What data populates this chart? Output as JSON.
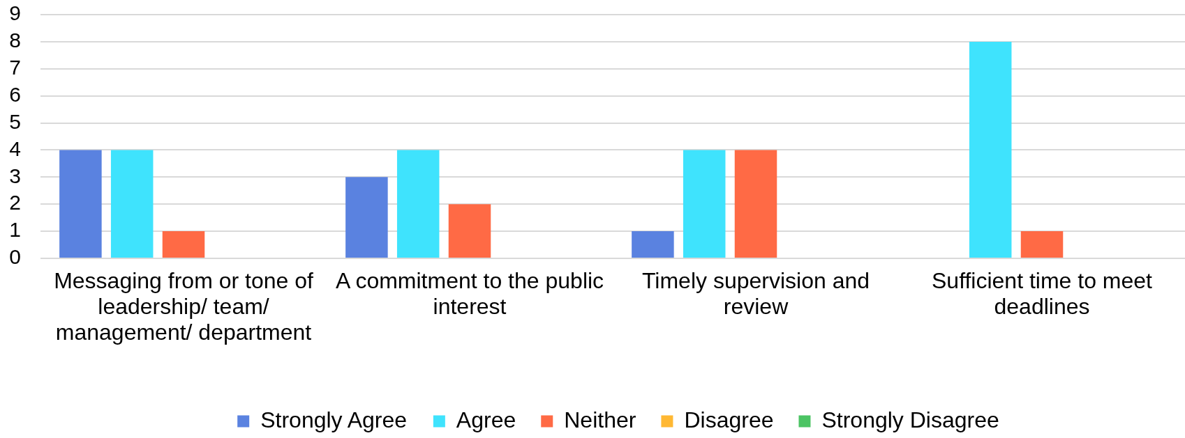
{
  "chart_data": {
    "type": "bar",
    "categories": [
      "Messaging from or tone of leadership/ team/ management/ department",
      "A commitment to the public interest",
      "Timely supervision and review",
      "Sufficient time to meet deadlines"
    ],
    "series": [
      {
        "name": "Strongly Agree",
        "color": "#5a82e0",
        "values": [
          4,
          3,
          1,
          0
        ]
      },
      {
        "name": "Agree",
        "color": "#3fe3fd",
        "values": [
          4,
          4,
          4,
          8
        ]
      },
      {
        "name": "Neither",
        "color": "#ff6a45",
        "values": [
          1,
          2,
          4,
          1
        ]
      },
      {
        "name": "Disagree",
        "color": "#ffb833",
        "values": [
          0,
          0,
          0,
          0
        ]
      },
      {
        "name": "Strongly Disagree",
        "color": "#4cc464",
        "values": [
          0,
          0,
          0,
          0
        ]
      }
    ],
    "ylim": [
      0,
      9
    ],
    "yticks": [
      0,
      1,
      2,
      3,
      4,
      5,
      6,
      7,
      8,
      9
    ],
    "grid": "y",
    "legend": "bottom"
  }
}
